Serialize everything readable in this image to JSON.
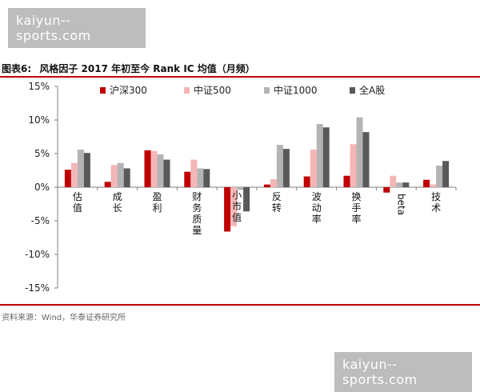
{
  "watermark_top": "kaiyun--sports.com",
  "watermark_bottom": "kaiyun--sports.com",
  "header": {
    "label": "图表6:",
    "title": "风格因子 2017 年初至今 Rank IC 均值（月频）"
  },
  "source": "资料来源：Wind，华泰证券研究所",
  "colors": {
    "沪深300": "#c00000",
    "中证500": "#f4b6b6",
    "中证1000": "#b4b4b4",
    "全A股": "#595959",
    "accent": "#c00000"
  },
  "chart_data": {
    "type": "bar",
    "title": "风格因子 2017 年初至今 Rank IC 均值（月频）",
    "xlabel": "",
    "ylabel": "",
    "ylim": [
      -15,
      15
    ],
    "yticks": [
      15,
      10,
      5,
      0,
      -5,
      -10,
      -15
    ],
    "ytick_labels": [
      "15%",
      "10%",
      "5%",
      "0%",
      "-5%",
      "-10%",
      "-15%"
    ],
    "legend_position": "top",
    "categories": [
      "估值",
      "成长",
      "盈利",
      "财务质量",
      "小市值",
      "反转",
      "波动率",
      "换手率",
      "beta",
      "技术"
    ],
    "series": [
      {
        "name": "沪深300",
        "values": [
          2.6,
          0.8,
          5.5,
          2.3,
          -6.6,
          0.4,
          1.6,
          1.7,
          -0.8,
          1.1
        ]
      },
      {
        "name": "中证500",
        "values": [
          3.6,
          3.3,
          5.4,
          4.1,
          -5.8,
          1.2,
          5.6,
          6.4,
          1.7,
          0.4
        ]
      },
      {
        "name": "中证1000",
        "values": [
          5.6,
          3.6,
          4.9,
          2.8,
          -0.4,
          6.3,
          9.4,
          10.4,
          0.7,
          3.2
        ]
      },
      {
        "name": "全A股",
        "values": [
          5.1,
          2.8,
          4.1,
          2.7,
          -3.6,
          5.7,
          8.9,
          8.2,
          0.7,
          3.9
        ]
      }
    ]
  }
}
